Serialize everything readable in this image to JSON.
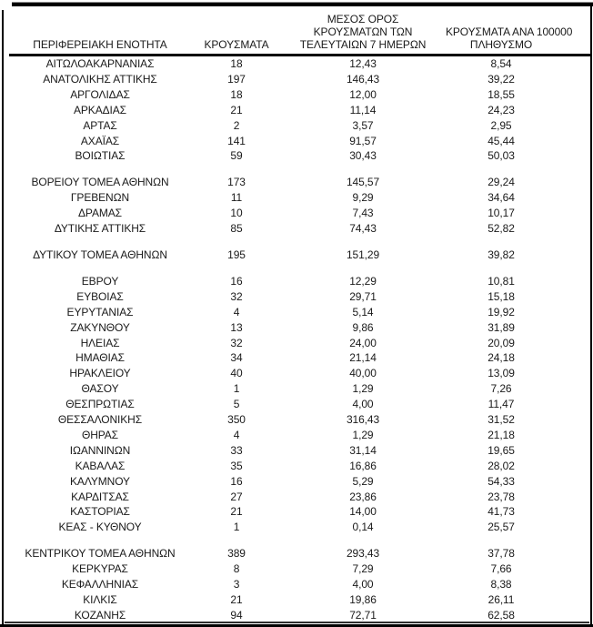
{
  "table": {
    "headers": {
      "region": "ΠΕΡΙΦΕΡΕΙΑΚΗ ΕΝΟΤΗΤΑ",
      "cases": "ΚΡΟΥΣΜΑΤΑ",
      "avg7_line1": "ΜΕΣΟΣ ΟΡΟΣ",
      "avg7_line2": "ΚΡΟΥΣΜΑΤΩΝ ΤΩΝ",
      "avg7_line3": "ΤΕΛΕΥΤΑΙΩΝ 7 ΗΜΕΡΩΝ",
      "per100k_line1": "ΚΡΟΥΣΜΑΤΑ ΑΝΑ 100000",
      "per100k_line2": "ΠΛΗΘΥΣΜΟ"
    },
    "rows": [
      {
        "region": "ΑΙΤΩΛΟΑΚΑΡΝΑΝΙΑΣ",
        "cases": "18",
        "avg7": "12,43",
        "per100k": "8,54"
      },
      {
        "region": "ΑΝΑΤΟΛΙΚΗΣ ΑΤΤΙΚΗΣ",
        "cases": "197",
        "avg7": "146,43",
        "per100k": "39,22"
      },
      {
        "region": "ΑΡΓΟΛΙΔΑΣ",
        "cases": "18",
        "avg7": "12,00",
        "per100k": "18,55"
      },
      {
        "region": "ΑΡΚΑΔΙΑΣ",
        "cases": "21",
        "avg7": "11,14",
        "per100k": "24,23"
      },
      {
        "region": "ΑΡΤΑΣ",
        "cases": "2",
        "avg7": "3,57",
        "per100k": "2,95"
      },
      {
        "region": "ΑΧΑΪΑΣ",
        "cases": "141",
        "avg7": "91,57",
        "per100k": "45,44"
      },
      {
        "region": "ΒΟΙΩΤΙΑΣ",
        "cases": "59",
        "avg7": "30,43",
        "per100k": "50,03"
      },
      {
        "spacer": true
      },
      {
        "region": "ΒΟΡΕΙΟΥ ΤΟΜΕΑ ΑΘΗΝΩΝ",
        "cases": "173",
        "avg7": "145,57",
        "per100k": "29,24"
      },
      {
        "region": "ΓΡΕΒΕΝΩΝ",
        "cases": "11",
        "avg7": "9,29",
        "per100k": "34,64"
      },
      {
        "region": "ΔΡΑΜΑΣ",
        "cases": "10",
        "avg7": "7,43",
        "per100k": "10,17"
      },
      {
        "region": "ΔΥΤΙΚΗΣ ΑΤΤΙΚΗΣ",
        "cases": "85",
        "avg7": "74,43",
        "per100k": "52,82"
      },
      {
        "spacer": true
      },
      {
        "region": "ΔΥΤΙΚΟΥ ΤΟΜΕΑ ΑΘΗΝΩΝ",
        "cases": "195",
        "avg7": "151,29",
        "per100k": "39,82"
      },
      {
        "spacer": true
      },
      {
        "region": "ΕΒΡΟΥ",
        "cases": "16",
        "avg7": "12,29",
        "per100k": "10,81"
      },
      {
        "region": "ΕΥΒΟΙΑΣ",
        "cases": "32",
        "avg7": "29,71",
        "per100k": "15,18"
      },
      {
        "region": "ΕΥΡΥΤΑΝΙΑΣ",
        "cases": "4",
        "avg7": "5,14",
        "per100k": "19,92"
      },
      {
        "region": "ΖΑΚΥΝΘΟΥ",
        "cases": "13",
        "avg7": "9,86",
        "per100k": "31,89"
      },
      {
        "region": "ΗΛΕΙΑΣ",
        "cases": "32",
        "avg7": "24,00",
        "per100k": "20,09"
      },
      {
        "region": "ΗΜΑΘΙΑΣ",
        "cases": "34",
        "avg7": "21,14",
        "per100k": "24,18"
      },
      {
        "region": "ΗΡΑΚΛΕΙΟΥ",
        "cases": "40",
        "avg7": "40,00",
        "per100k": "13,09"
      },
      {
        "region": "ΘΑΣΟΥ",
        "cases": "1",
        "avg7": "1,29",
        "per100k": "7,26"
      },
      {
        "region": "ΘΕΣΠΡΩΤΙΑΣ",
        "cases": "5",
        "avg7": "4,00",
        "per100k": "11,47"
      },
      {
        "region": "ΘΕΣΣΑΛΟΝΙΚΗΣ",
        "cases": "350",
        "avg7": "316,43",
        "per100k": "31,52"
      },
      {
        "region": "ΘΗΡΑΣ",
        "cases": "4",
        "avg7": "1,29",
        "per100k": "21,18"
      },
      {
        "region": "ΙΩΑΝΝΙΝΩΝ",
        "cases": "33",
        "avg7": "31,14",
        "per100k": "19,65"
      },
      {
        "region": "ΚΑΒΑΛΑΣ",
        "cases": "35",
        "avg7": "16,86",
        "per100k": "28,02"
      },
      {
        "region": "ΚΑΛΥΜΝΟΥ",
        "cases": "16",
        "avg7": "5,29",
        "per100k": "54,33"
      },
      {
        "region": "ΚΑΡΔΙΤΣΑΣ",
        "cases": "27",
        "avg7": "23,86",
        "per100k": "23,78"
      },
      {
        "region": "ΚΑΣΤΟΡΙΑΣ",
        "cases": "21",
        "avg7": "14,00",
        "per100k": "41,73"
      },
      {
        "region": "ΚΕΑΣ - ΚΥΘΝΟΥ",
        "cases": "1",
        "avg7": "0,14",
        "per100k": "25,57"
      },
      {
        "spacer": true
      },
      {
        "region": "ΚΕΝΤΡΙΚΟΥ ΤΟΜΕΑ ΑΘΗΝΩΝ",
        "cases": "389",
        "avg7": "293,43",
        "per100k": "37,78"
      },
      {
        "region": "ΚΕΡΚΥΡΑΣ",
        "cases": "8",
        "avg7": "7,29",
        "per100k": "7,66"
      },
      {
        "region": "ΚΕΦΑΛΛΗΝΙΑΣ",
        "cases": "3",
        "avg7": "4,00",
        "per100k": "8,38"
      },
      {
        "region": "ΚΙΛΚΙΣ",
        "cases": "21",
        "avg7": "19,86",
        "per100k": "26,11"
      },
      {
        "region": "ΚΟΖΑΝΗΣ",
        "cases": "94",
        "avg7": "72,71",
        "per100k": "62,58"
      }
    ]
  },
  "colors": {
    "border": "#000000",
    "text": "#1a1a1a",
    "background": "#ffffff"
  }
}
